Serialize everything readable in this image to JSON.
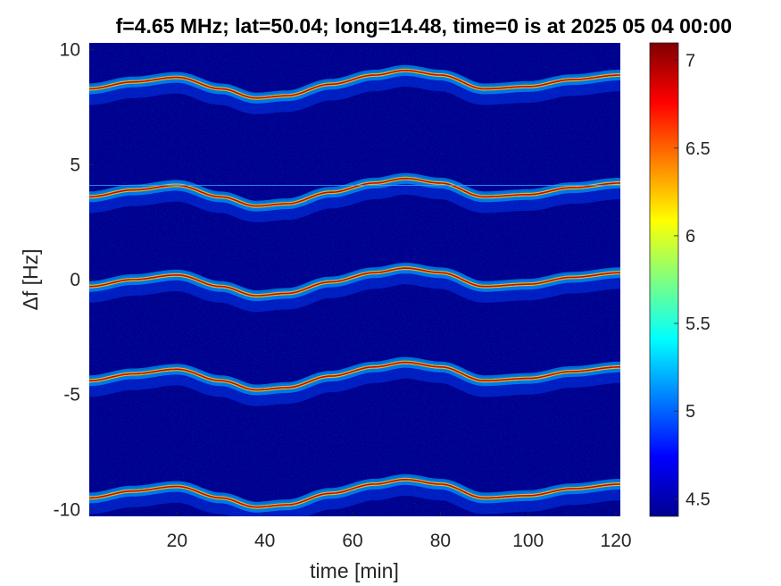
{
  "chart_data": {
    "type": "heatmap",
    "title": "f=4.65 MHz;  lat=50.04; long=14.48, time=0 is at 2025 05 04 00:00",
    "xlabel": "time [min]",
    "ylabel": "Δf [Hz]",
    "xlim": [
      0,
      121
    ],
    "ylim": [
      -10.3,
      10.3
    ],
    "xticks": [
      20,
      40,
      60,
      80,
      100,
      120
    ],
    "yticks": [
      -10,
      -5,
      0,
      5,
      10
    ],
    "colorbar": {
      "colormap": "jet",
      "clim": [
        4.4,
        7.1
      ],
      "ticks": [
        4.5,
        5,
        5.5,
        6,
        6.5,
        7
      ]
    },
    "background_color": "#00008f",
    "horizontal_artifact_line": {
      "y": 4.1
    },
    "traces": [
      {
        "name": "trace at +8.6 Hz",
        "offset": 8.6
      },
      {
        "name": "trace at +3.9 Hz",
        "offset": 3.9
      },
      {
        "name": "trace at 0 Hz",
        "offset": 0.0
      },
      {
        "name": "trace at -4.1 Hz",
        "offset": -4.1
      },
      {
        "name": "trace at -9.2 Hz",
        "offset": -9.2
      }
    ],
    "trace_shape": {
      "time_min": [
        0,
        10,
        20,
        30,
        38,
        45,
        55,
        65,
        72,
        80,
        90,
        100,
        110,
        121
      ],
      "delta_hz": [
        -0.3,
        0.0,
        0.2,
        -0.3,
        -0.7,
        -0.6,
        -0.1,
        0.3,
        0.5,
        0.3,
        -0.3,
        -0.2,
        0.1,
        0.3
      ]
    }
  }
}
